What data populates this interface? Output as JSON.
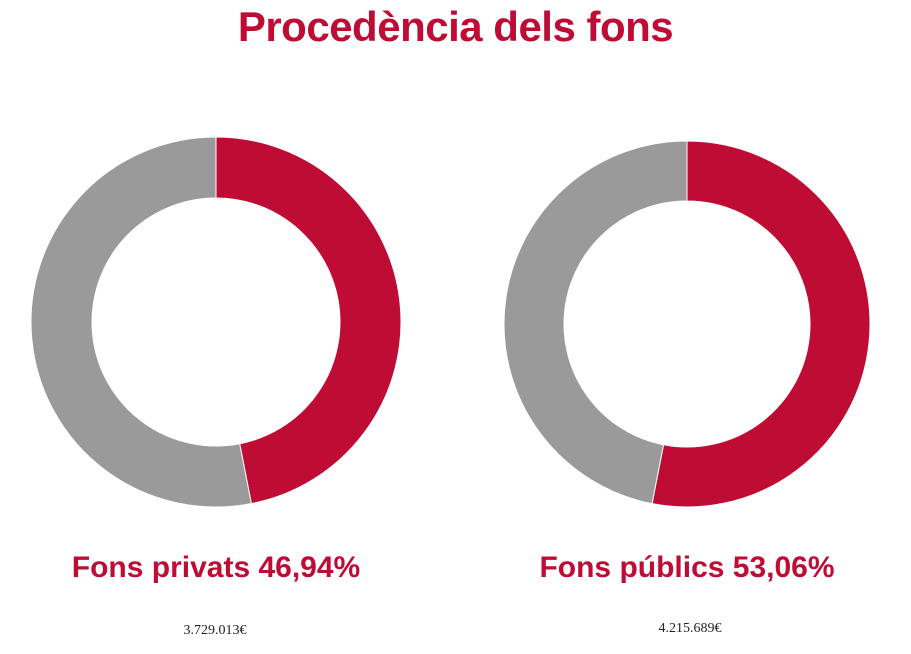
{
  "colors": {
    "accent": "#be0c35",
    "rest": "#9a9a9a"
  },
  "chart_data": [
    {
      "type": "pie",
      "title": "Procedència dels fons",
      "label": "Fons privats 46,94%",
      "amount": "3.729.013€",
      "slices": [
        {
          "value": 46.94,
          "color": "#be0c35"
        },
        {
          "value": 53.06,
          "color": "#9a9a9a"
        }
      ]
    },
    {
      "type": "pie",
      "title": "Procedència dels fons",
      "label": "Fons públics 53,06%",
      "amount": "4.215.689€",
      "slices": [
        {
          "value": 53.06,
          "color": "#be0c35"
        },
        {
          "value": 46.94,
          "color": "#9a9a9a"
        }
      ]
    }
  ]
}
